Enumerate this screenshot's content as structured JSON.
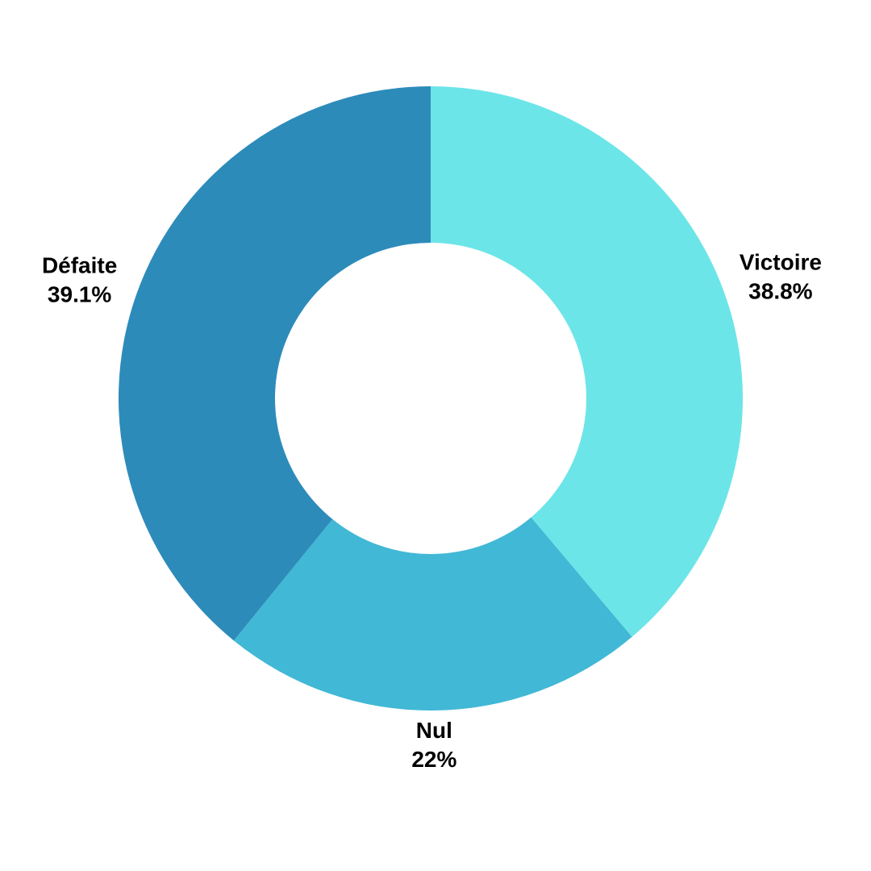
{
  "chart_data": {
    "type": "donut",
    "categories": [
      "Victoire",
      "Nul",
      "Défaite"
    ],
    "values": [
      38.8,
      22,
      39.1
    ],
    "value_labels": [
      "38.8%",
      "22%",
      "39.1%"
    ],
    "colors": [
      "#6ce5e8",
      "#41b8d5",
      "#2d8bba"
    ]
  }
}
